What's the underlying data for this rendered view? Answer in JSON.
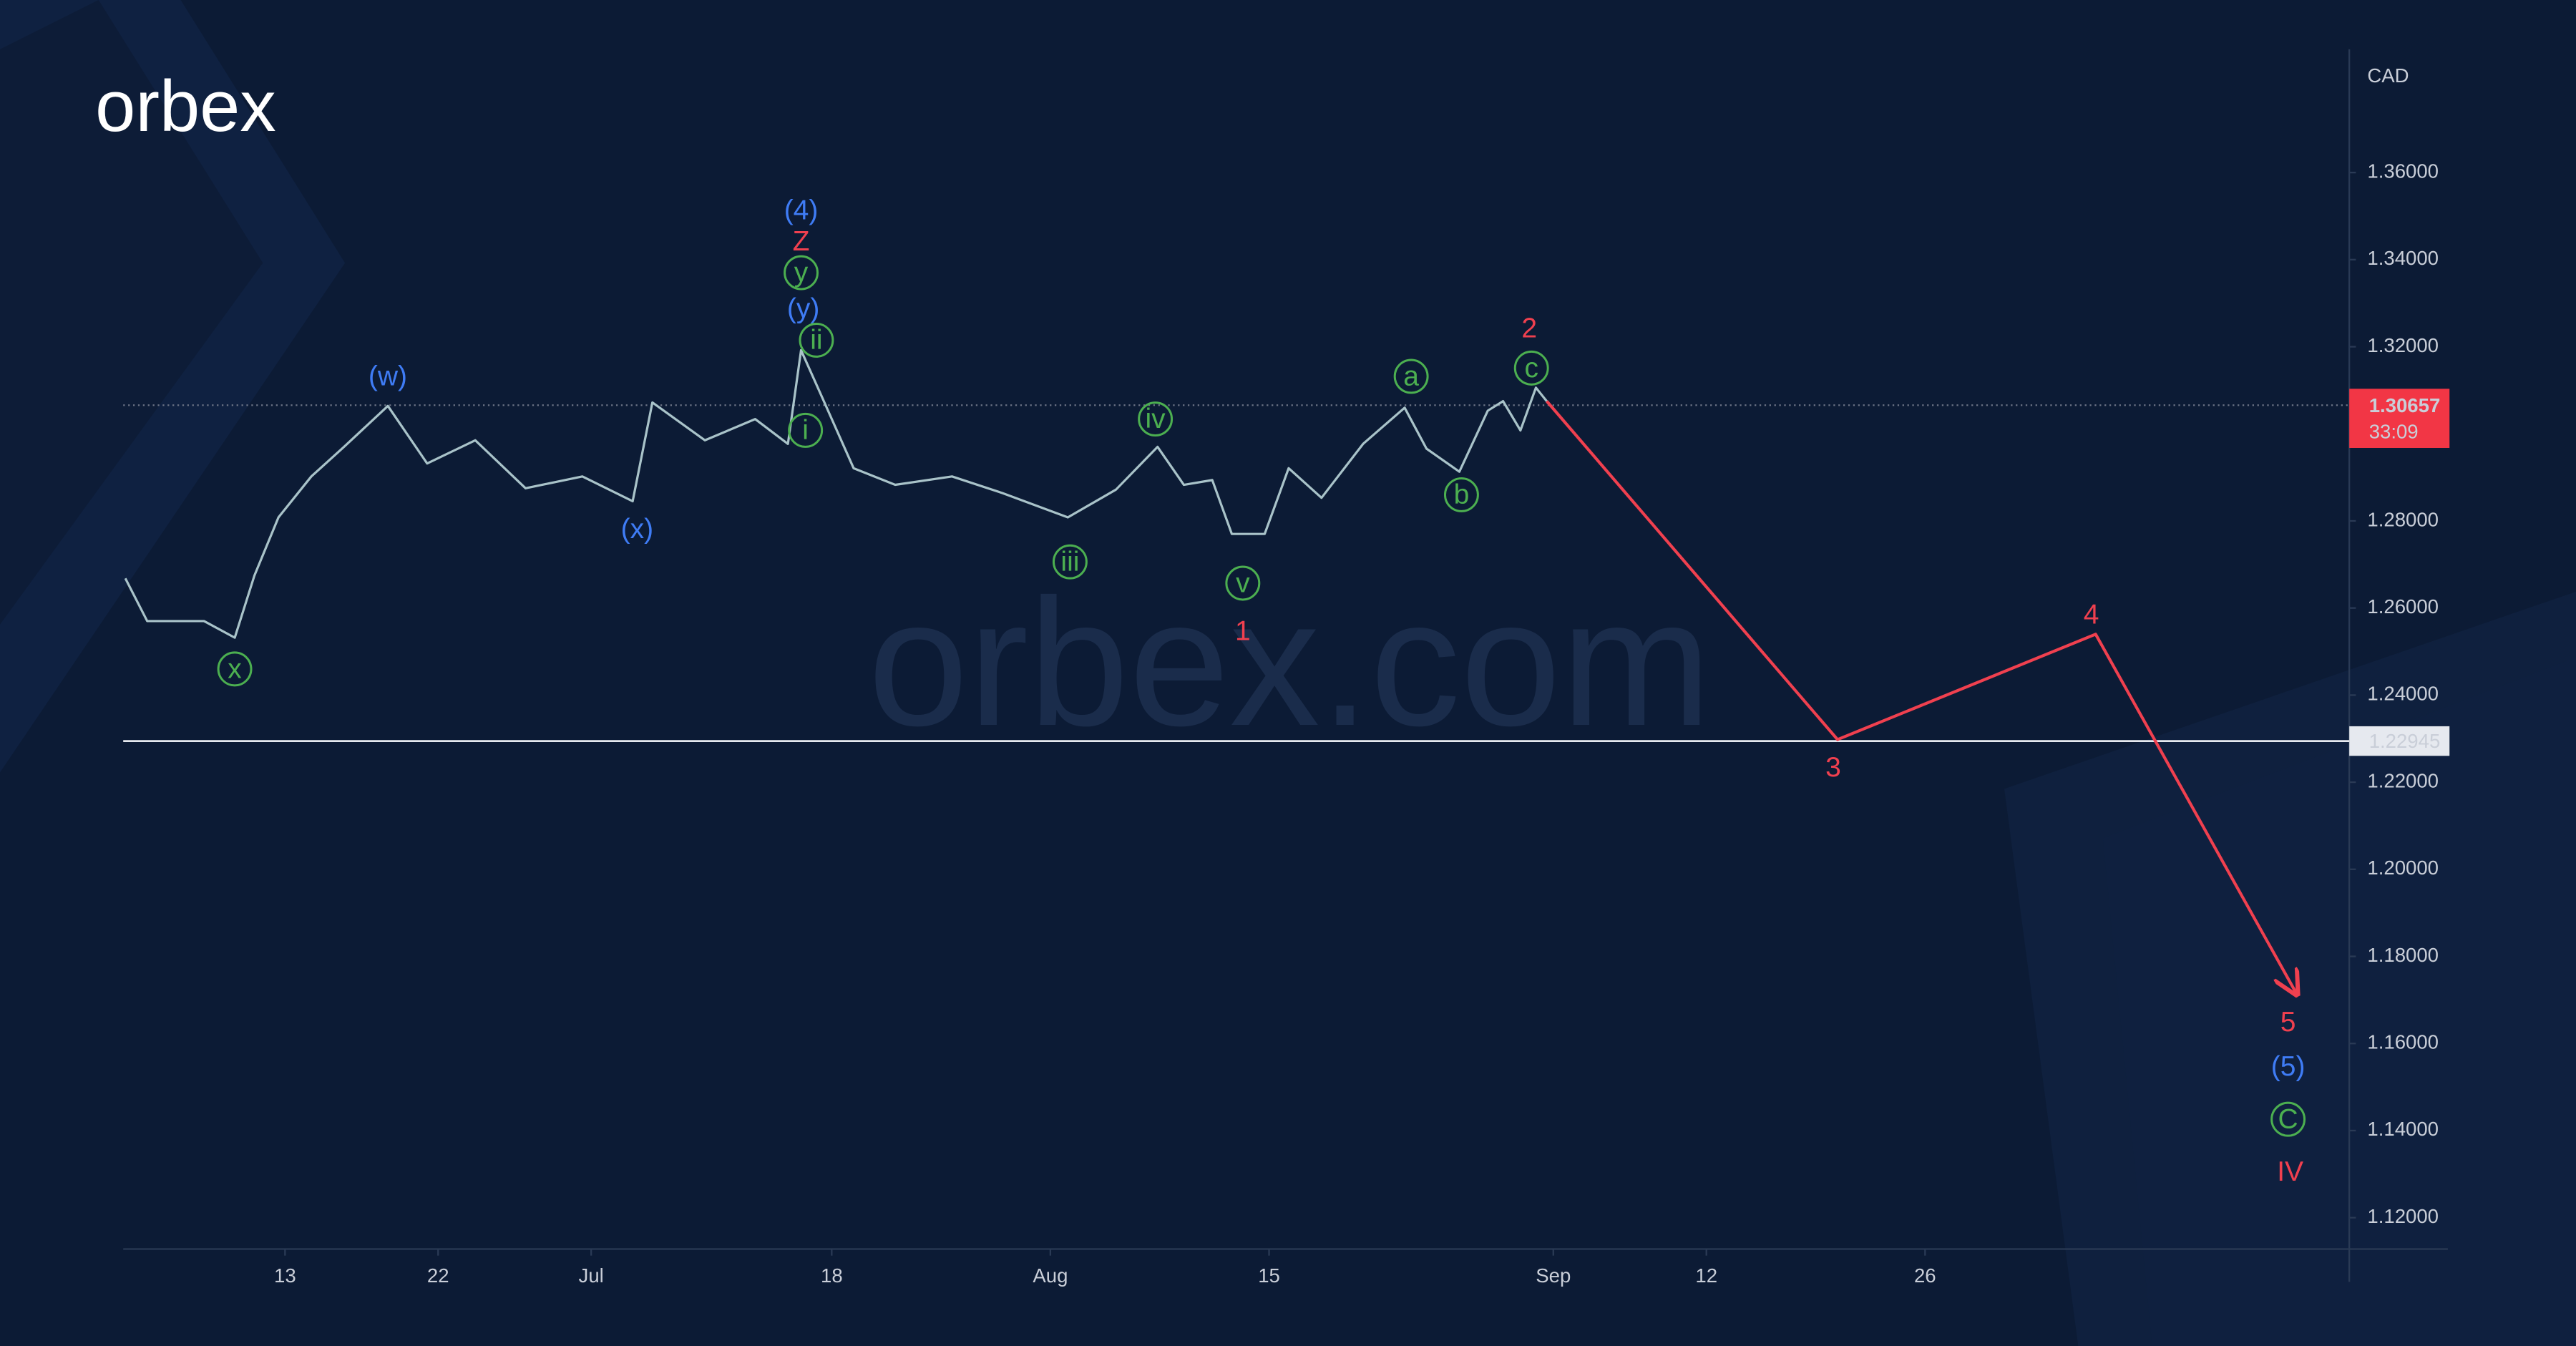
{
  "chart_data": {
    "type": "line",
    "brand": "orbex",
    "watermark": "orbex.com",
    "y_unit": "CAD",
    "xlim": [
      -7.4,
      94.4
    ],
    "ylim": [
      1.1128,
      1.3883
    ],
    "xticks": [
      {
        "value": 0,
        "label": "13"
      },
      {
        "value": 7,
        "label": "22"
      },
      {
        "value": 14,
        "label": "Jul"
      },
      {
        "value": 25,
        "label": "18"
      },
      {
        "value": 35,
        "label": "Aug"
      },
      {
        "value": 45,
        "label": "15"
      },
      {
        "value": 58,
        "label": "Sep"
      },
      {
        "value": 65,
        "label": "12"
      },
      {
        "value": 75,
        "label": "26"
      }
    ],
    "yticks": [
      {
        "value": 1.12,
        "label": "1.12000"
      },
      {
        "value": 1.14,
        "label": "1.14000"
      },
      {
        "value": 1.16,
        "label": "1.16000"
      },
      {
        "value": 1.18,
        "label": "1.18000"
      },
      {
        "value": 1.2,
        "label": "1.20000"
      },
      {
        "value": 1.22,
        "label": "1.22000"
      },
      {
        "value": 1.24,
        "label": "1.24000"
      },
      {
        "value": 1.26,
        "label": "1.26000"
      },
      {
        "value": 1.28,
        "label": "1.28000"
      },
      {
        "value": 1.3,
        "label": "1.30000"
      },
      {
        "value": 1.32,
        "label": "1.32000"
      },
      {
        "value": 1.34,
        "label": "1.34000"
      },
      {
        "value": 1.36,
        "label": "1.36000"
      }
    ],
    "series": [
      {
        "color": "#a9c3c9",
        "x": [
          -7.3,
          -6.3,
          -3.7,
          -2.3,
          -1.4,
          -0.3,
          1.2,
          2.7,
          4.7,
          6.5,
          8.7,
          11.0,
          13.6,
          15.9,
          16.8,
          19.2,
          21.5,
          23.0,
          23.6,
          24.5,
          26.0,
          27.9,
          30.5,
          32.8,
          35.8,
          38.0,
          39.9,
          41.1,
          42.4,
          43.3,
          44.8,
          45.9,
          47.4,
          49.3,
          51.2,
          52.2,
          53.7,
          55.0,
          55.7,
          56.5,
          57.2,
          57.7
        ],
        "values": [
          1.2668,
          1.257,
          1.257,
          1.2532,
          1.2675,
          1.2808,
          1.2902,
          1.297,
          1.3064,
          1.2932,
          1.2985,
          1.2875,
          1.2902,
          1.2845,
          1.3072,
          1.2985,
          1.3034,
          1.2977,
          1.3192,
          1.3091,
          1.2921,
          1.2883,
          1.2902,
          1.2864,
          1.2808,
          1.2872,
          1.297,
          1.2883,
          1.2894,
          1.277,
          1.277,
          1.2921,
          1.2853,
          1.2977,
          1.306,
          1.2966,
          1.2913,
          1.3053,
          1.3075,
          1.3008,
          1.3106,
          1.3075
        ]
      },
      {
        "color": "#f0404f",
        "x": [
          57.7,
          71.0,
          82.8,
          92.0
        ],
        "values": [
          1.3075,
          1.2298,
          1.254,
          1.1713
        ]
      }
    ],
    "price_line": {
      "value": 1.30657,
      "label": "1.30657",
      "countdown": "33:09",
      "color": "#f23645"
    },
    "level_line": {
      "value": 1.22945,
      "label": "1.22945"
    },
    "annotations": [
      {
        "text": "(4)",
        "x": 23.6,
        "y": 1.3513,
        "color": "#3f7cf5"
      },
      {
        "text": "Z",
        "x": 23.6,
        "y": 1.3442,
        "color": "#f0404f"
      },
      {
        "text": "y",
        "x": 23.6,
        "y": 1.337,
        "color": "#4caf50",
        "circled": true
      },
      {
        "text": "(y)",
        "x": 23.7,
        "y": 1.3287,
        "color": "#3f7cf5"
      },
      {
        "text": "ii",
        "x": 24.3,
        "y": 1.3215,
        "color": "#4caf50",
        "circled": true
      },
      {
        "text": "i",
        "x": 23.8,
        "y": 1.3008,
        "color": "#4caf50",
        "circled": true
      },
      {
        "text": "(w)",
        "x": 4.7,
        "y": 1.3132,
        "color": "#3f7cf5"
      },
      {
        "text": "(x)",
        "x": 16.1,
        "y": 1.2781,
        "color": "#3f7cf5"
      },
      {
        "text": "x",
        "x": -2.3,
        "y": 1.246,
        "color": "#4caf50",
        "circled": true
      },
      {
        "text": "iii",
        "x": 35.9,
        "y": 1.2706,
        "color": "#4caf50",
        "circled": true
      },
      {
        "text": "iv",
        "x": 39.8,
        "y": 1.3034,
        "color": "#4caf50",
        "circled": true
      },
      {
        "text": "v",
        "x": 43.8,
        "y": 1.2657,
        "color": "#4caf50",
        "circled": true
      },
      {
        "text": "1",
        "x": 43.8,
        "y": 1.2547,
        "color": "#f0404f"
      },
      {
        "text": "a",
        "x": 51.5,
        "y": 1.3132,
        "color": "#4caf50",
        "circled": true
      },
      {
        "text": "b",
        "x": 53.8,
        "y": 1.286,
        "color": "#4caf50",
        "circled": true
      },
      {
        "text": "c",
        "x": 57.0,
        "y": 1.3151,
        "color": "#4caf50",
        "circled": true
      },
      {
        "text": "2",
        "x": 56.9,
        "y": 1.3242,
        "color": "#f0404f"
      },
      {
        "text": "3",
        "x": 70.8,
        "y": 1.2234,
        "color": "#f0404f"
      },
      {
        "text": "4",
        "x": 82.6,
        "y": 1.2585,
        "color": "#f0404f"
      },
      {
        "text": "5",
        "x": 91.6,
        "y": 1.1649,
        "color": "#f0404f"
      },
      {
        "text": "(5)",
        "x": 91.6,
        "y": 1.1547,
        "color": "#3f7cf5"
      },
      {
        "text": "C",
        "x": 91.6,
        "y": 1.1426,
        "color": "#4caf50",
        "circled": true
      },
      {
        "text": "IV",
        "x": 91.7,
        "y": 1.1306,
        "color": "#f0404f"
      }
    ]
  }
}
